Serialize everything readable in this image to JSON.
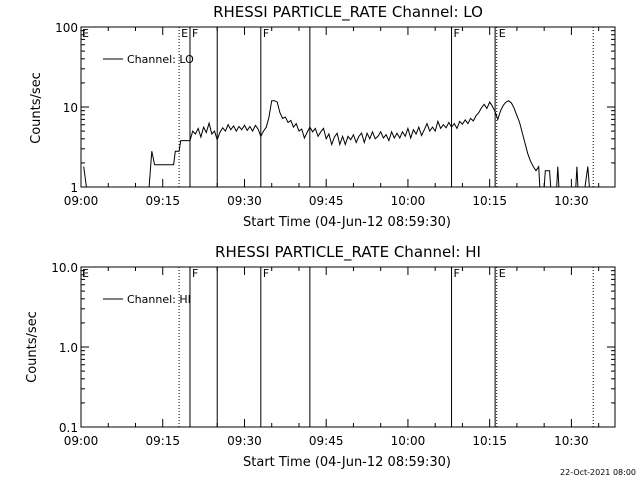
{
  "footer_text": "22-Oct-2021 08:00",
  "chart_data": [
    {
      "type": "line",
      "title": "RHESSI PARTICLE_RATE Channel: LO",
      "xlabel": "Start Time (04-Jun-12 08:59:30)",
      "ylabel": "Counts/sec",
      "yscale": "log",
      "xlim": [
        "09:00",
        "10:38"
      ],
      "ylim": [
        1,
        100
      ],
      "xticks": [
        "09:00",
        "09:15",
        "09:30",
        "09:45",
        "10:00",
        "10:15",
        "10:30"
      ],
      "yticks": [
        {
          "value": 1,
          "label": "1"
        },
        {
          "value": 10,
          "label": "10"
        },
        {
          "value": 100,
          "label": "100"
        }
      ],
      "legend": {
        "label": "Channel: LO",
        "placement": "top-left"
      },
      "flag_lines": [
        {
          "time": "09:18",
          "style": "dotted",
          "label": "E"
        },
        {
          "time": "09:20",
          "style": "solid",
          "label": "F"
        },
        {
          "time": "09:25",
          "style": "solid",
          "label": ""
        },
        {
          "time": "09:33",
          "style": "solid",
          "label": "F"
        },
        {
          "time": "09:42",
          "style": "solid",
          "label": ""
        },
        {
          "time": "10:08",
          "style": "solid",
          "label": "F"
        },
        {
          "time": "10:16",
          "style": "solid",
          "label": ""
        },
        {
          "time": "10:16.3",
          "style": "dotted",
          "label": "E"
        },
        {
          "time": "10:34",
          "style": "dotted",
          "label": ""
        }
      ],
      "corner_label": "E",
      "series": [
        {
          "values": [
            [
              "09:00.5",
              1.8
            ],
            [
              "09:01",
              1.0
            ],
            [
              "09:01.5",
              1.0
            ],
            [
              "09:12.5",
              1.0
            ],
            [
              "09:13",
              2.8
            ],
            [
              "09:13.5",
              1.9
            ],
            [
              "09:17",
              1.9
            ],
            [
              "09:17.3",
              2.8
            ],
            [
              "09:18",
              2.8
            ],
            [
              "09:18.3",
              3.8
            ],
            [
              "09:20",
              3.8
            ],
            [
              "09:20.5",
              5.0
            ],
            [
              "09:21",
              4.6
            ],
            [
              "09:21.5",
              5.4
            ],
            [
              "09:22",
              4.2
            ],
            [
              "09:22.5",
              5.6
            ],
            [
              "09:23",
              4.8
            ],
            [
              "09:23.5",
              6.3
            ],
            [
              "09:24",
              4.6
            ],
            [
              "09:24.5",
              5.0
            ],
            [
              "09:25",
              3.9
            ],
            [
              "09:25.5",
              4.8
            ],
            [
              "09:26",
              5.5
            ],
            [
              "09:26.5",
              5.0
            ],
            [
              "09:27",
              6.0
            ],
            [
              "09:27.5",
              5.2
            ],
            [
              "09:28",
              5.8
            ],
            [
              "09:28.5",
              5.0
            ],
            [
              "09:29",
              5.7
            ],
            [
              "09:29.5",
              5.2
            ],
            [
              "09:30",
              5.9
            ],
            [
              "09:30.5",
              5.1
            ],
            [
              "09:31",
              5.7
            ],
            [
              "09:31.5",
              5.0
            ],
            [
              "09:32",
              5.9
            ],
            [
              "09:32.5",
              5.3
            ],
            [
              "09:33",
              4.3
            ],
            [
              "09:33.5",
              5.0
            ],
            [
              "09:34",
              5.6
            ],
            [
              "09:34.5",
              7.5
            ],
            [
              "09:35",
              12.0
            ],
            [
              "09:35.5",
              12.0
            ],
            [
              "09:36",
              11.5
            ],
            [
              "09:36.5",
              8.5
            ],
            [
              "09:37",
              7.2
            ],
            [
              "09:37.5",
              7.5
            ],
            [
              "09:38",
              6.4
            ],
            [
              "09:38.5",
              6.8
            ],
            [
              "09:39",
              5.6
            ],
            [
              "09:39.5",
              6.2
            ],
            [
              "09:40",
              5.0
            ],
            [
              "09:40.5",
              5.3
            ],
            [
              "09:41",
              4.1
            ],
            [
              "09:41.5",
              4.8
            ],
            [
              "09:42",
              5.6
            ],
            [
              "09:42.5",
              4.9
            ],
            [
              "09:43",
              5.4
            ],
            [
              "09:43.5",
              4.3
            ],
            [
              "09:44",
              4.9
            ],
            [
              "09:44.5",
              5.4
            ],
            [
              "09:45",
              4.0
            ],
            [
              "09:45.5",
              4.6
            ],
            [
              "09:46",
              3.4
            ],
            [
              "09:46.5",
              4.2
            ],
            [
              "09:47",
              4.7
            ],
            [
              "09:47.5",
              3.4
            ],
            [
              "09:48",
              4.3
            ],
            [
              "09:48.5",
              3.4
            ],
            [
              "09:49",
              4.3
            ],
            [
              "09:49.5",
              3.9
            ],
            [
              "09:50",
              4.5
            ],
            [
              "09:50.5",
              3.6
            ],
            [
              "09:51",
              4.3
            ],
            [
              "09:51.5",
              4.7
            ],
            [
              "09:52",
              3.6
            ],
            [
              "09:52.5",
              4.7
            ],
            [
              "09:53",
              4.0
            ],
            [
              "09:53.5",
              4.9
            ],
            [
              "09:54",
              4.0
            ],
            [
              "09:54.5",
              4.3
            ],
            [
              "09:55",
              4.9
            ],
            [
              "09:55.5",
              4.1
            ],
            [
              "09:56",
              4.5
            ],
            [
              "09:56.5",
              3.8
            ],
            [
              "09:57",
              4.9
            ],
            [
              "09:57.5",
              4.1
            ],
            [
              "09:58",
              4.7
            ],
            [
              "09:58.5",
              4.1
            ],
            [
              "09:59",
              4.9
            ],
            [
              "09:59.5",
              4.3
            ],
            [
              "10:00",
              5.4
            ],
            [
              "10:00.5",
              4.1
            ],
            [
              "10:01",
              5.2
            ],
            [
              "10:01.5",
              4.6
            ],
            [
              "10:02",
              5.6
            ],
            [
              "10:02.5",
              4.4
            ],
            [
              "10:03",
              5.2
            ],
            [
              "10:03.5",
              6.2
            ],
            [
              "10:04",
              5.0
            ],
            [
              "10:04.5",
              5.6
            ],
            [
              "10:05",
              5.0
            ],
            [
              "10:05.5",
              6.6
            ],
            [
              "10:06",
              5.4
            ],
            [
              "10:06.5",
              6.0
            ],
            [
              "10:07",
              5.5
            ],
            [
              "10:07.5",
              6.4
            ],
            [
              "10:08",
              5.6
            ],
            [
              "10:08.5",
              6.2
            ],
            [
              "10:09",
              5.4
            ],
            [
              "10:09.5",
              6.6
            ],
            [
              "10:10",
              6.1
            ],
            [
              "10:10.5",
              6.9
            ],
            [
              "10:11",
              6.2
            ],
            [
              "10:11.5",
              7.2
            ],
            [
              "10:12",
              6.7
            ],
            [
              "10:12.5",
              7.8
            ],
            [
              "10:13",
              8.5
            ],
            [
              "10:13.5",
              9.8
            ],
            [
              "10:14",
              10.8
            ],
            [
              "10:14.5",
              9.6
            ],
            [
              "10:15",
              11.5
            ],
            [
              "10:15.5",
              10.2
            ],
            [
              "10:16",
              8.7
            ],
            [
              "10:16.5",
              7.0
            ],
            [
              "10:17",
              9.0
            ],
            [
              "10:17.5",
              10.5
            ],
            [
              "10:18",
              11.5
            ],
            [
              "10:18.5",
              12.0
            ],
            [
              "10:19",
              11.2
            ],
            [
              "10:19.5",
              9.6
            ],
            [
              "10:20",
              7.8
            ],
            [
              "10:20.5",
              6.4
            ],
            [
              "10:21",
              4.7
            ],
            [
              "10:21.5",
              3.5
            ],
            [
              "10:22",
              2.6
            ],
            [
              "10:22.5",
              2.1
            ],
            [
              "10:23",
              1.8
            ],
            [
              "10:23.5",
              1.6
            ],
            [
              "10:24",
              1.8
            ],
            [
              "10:24.2",
              1.0
            ],
            [
              "10:25",
              1.0
            ],
            [
              "10:25.2",
              1.6
            ],
            [
              "10:26",
              1.6
            ],
            [
              "10:26.2",
              1.0
            ],
            [
              "10:27.3",
              1.0
            ],
            [
              "10:27.5",
              1.8
            ],
            [
              "10:27.7",
              1.0
            ],
            [
              "10:30.8",
              1.0
            ],
            [
              "10:31",
              1.8
            ],
            [
              "10:31.2",
              1.0
            ],
            [
              "10:32.5",
              1.0
            ],
            [
              "10:33",
              1.8
            ],
            [
              "10:33.3",
              1.0
            ]
          ]
        }
      ]
    },
    {
      "type": "line",
      "title": "RHESSI PARTICLE_RATE Channel: HI",
      "xlabel": "Start Time (04-Jun-12 08:59:30)",
      "ylabel": "Counts/sec",
      "yscale": "log",
      "xlim": [
        "09:00",
        "10:38"
      ],
      "ylim": [
        0.1,
        10.0
      ],
      "xticks": [
        "09:00",
        "09:15",
        "09:30",
        "09:45",
        "10:00",
        "10:15",
        "10:30"
      ],
      "yticks": [
        {
          "value": 0.1,
          "label": "0.1"
        },
        {
          "value": 1.0,
          "label": "1.0"
        },
        {
          "value": 10.0,
          "label": "10.0"
        }
      ],
      "legend": {
        "label": "Channel: HI",
        "placement": "top-left"
      },
      "flag_lines": [
        {
          "time": "09:18",
          "style": "dotted",
          "label": ""
        },
        {
          "time": "09:20",
          "style": "solid",
          "label": "F"
        },
        {
          "time": "09:25",
          "style": "solid",
          "label": ""
        },
        {
          "time": "09:33",
          "style": "solid",
          "label": "F"
        },
        {
          "time": "09:42",
          "style": "solid",
          "label": ""
        },
        {
          "time": "10:08",
          "style": "solid",
          "label": "F"
        },
        {
          "time": "10:16",
          "style": "solid",
          "label": ""
        },
        {
          "time": "10:16.3",
          "style": "dotted",
          "label": "E"
        },
        {
          "time": "10:34",
          "style": "dotted",
          "label": ""
        }
      ],
      "corner_label": "E",
      "series": [
        {
          "values": []
        }
      ]
    }
  ]
}
